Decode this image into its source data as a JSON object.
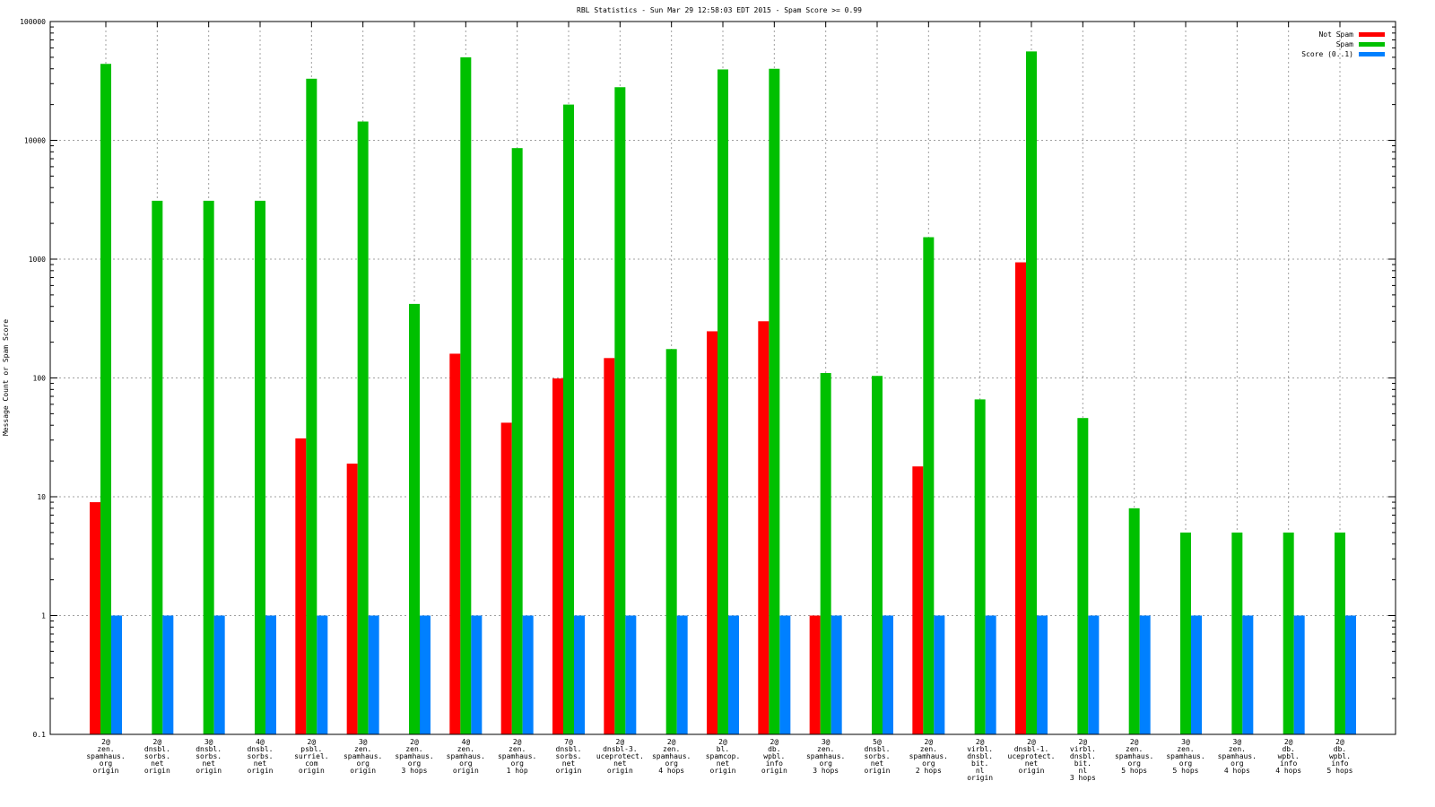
{
  "chart_data": {
    "type": "bar",
    "title": "RBL Statistics - Sun Mar 29 12:58:03 EDT 2015 - Spam Score >= 0.99",
    "xlabel": "",
    "ylabel": "Message Count or Spam Score",
    "yscale": "log",
    "ylim": [
      0.1,
      100000
    ],
    "yticks": [
      "100000",
      "10000",
      "1000",
      "100",
      "10",
      "1",
      "0.1"
    ],
    "grid": true,
    "legend_position": "top-right",
    "categories": [
      [
        "2@",
        "zen.",
        "spamhaus.",
        "org",
        "origin"
      ],
      [
        "2@",
        "dnsbl.",
        "sorbs.",
        "net",
        "origin"
      ],
      [
        "3@",
        "dnsbl.",
        "sorbs.",
        "net",
        "origin"
      ],
      [
        "4@",
        "dnsbl.",
        "sorbs.",
        "net",
        "origin"
      ],
      [
        "2@",
        "psbl.",
        "surriel.",
        "com",
        "origin"
      ],
      [
        "3@",
        "zen.",
        "spamhaus.",
        "org",
        "origin"
      ],
      [
        "2@",
        "zen.",
        "spamhaus.",
        "org",
        "3 hops"
      ],
      [
        "4@",
        "zen.",
        "spamhaus.",
        "org",
        "origin"
      ],
      [
        "2@",
        "zen.",
        "spamhaus.",
        "org",
        "1 hop"
      ],
      [
        "7@",
        "dnsbl.",
        "sorbs.",
        "net",
        "origin"
      ],
      [
        "2@",
        "dnsbl-3.",
        "uceprotect.",
        "net",
        "origin"
      ],
      [
        "2@",
        "zen.",
        "spamhaus.",
        "org",
        "4 hops"
      ],
      [
        "2@",
        "bl.",
        "spamcop.",
        "net",
        "origin"
      ],
      [
        "2@",
        "db.",
        "wpbl.",
        "info",
        "origin"
      ],
      [
        "3@",
        "zen.",
        "spamhaus.",
        "org",
        "3 hops"
      ],
      [
        "5@",
        "dnsbl.",
        "sorbs.",
        "net",
        "origin"
      ],
      [
        "2@",
        "zen.",
        "spamhaus.",
        "org",
        "2 hops"
      ],
      [
        "2@",
        "virbl.",
        "dnsbl.",
        "bit.",
        "nl",
        "origin"
      ],
      [
        "2@",
        "dnsbl-1.",
        "uceprotect.",
        "net",
        "origin"
      ],
      [
        "2@",
        "virbl.",
        "dnsbl.",
        "bit.",
        "nl",
        "3 hops"
      ],
      [
        "2@",
        "zen.",
        "spamhaus.",
        "org",
        "5 hops"
      ],
      [
        "3@",
        "zen.",
        "spamhaus.",
        "org",
        "5 hops"
      ],
      [
        "3@",
        "zen.",
        "spamhaus.",
        "org",
        "4 hops"
      ],
      [
        "2@",
        "db.",
        "wpbl.",
        "info",
        "4 hops"
      ],
      [
        "2@",
        "db.",
        "wpbl.",
        "info",
        "5 hops"
      ]
    ],
    "series": [
      {
        "name": "Not Spam",
        "color": "#ff0000",
        "values": [
          9,
          0,
          0,
          0,
          31,
          19,
          0,
          160,
          42,
          99,
          147,
          0,
          247,
          300,
          1,
          0,
          18,
          0,
          940,
          0,
          0,
          0,
          0,
          0,
          0
        ]
      },
      {
        "name": "Spam",
        "color": "#00c000",
        "values": [
          44000,
          3100,
          3100,
          3100,
          33000,
          14400,
          420,
          50000,
          8600,
          20000,
          28000,
          175,
          39500,
          40000,
          110,
          104,
          1530,
          66,
          56000,
          46,
          8,
          5,
          5,
          5,
          5
        ]
      },
      {
        "name": "Score (0..1)",
        "color": "#0080ff",
        "values": [
          1,
          1,
          1,
          1,
          1,
          1,
          1,
          1,
          1,
          1,
          1,
          1,
          1,
          1,
          1,
          1,
          1,
          1,
          1,
          1,
          1,
          1,
          1,
          1,
          1
        ]
      }
    ]
  }
}
